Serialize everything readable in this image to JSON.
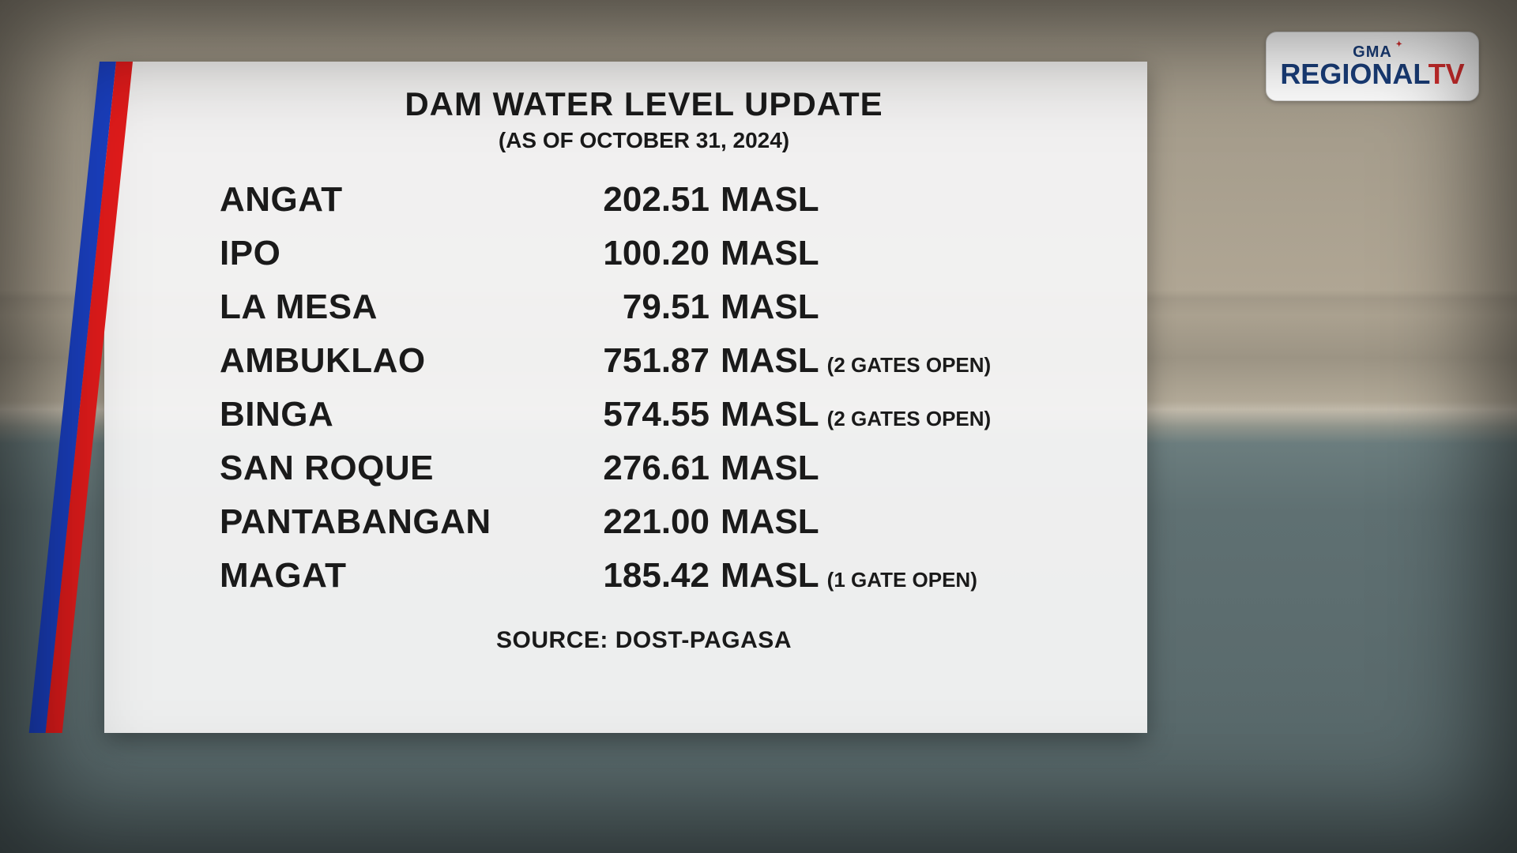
{
  "logo": {
    "line1": "GMA",
    "line2_part1": "REGIONAL",
    "line2_part2": "TV",
    "bg_color": "#ffffff",
    "color_primary": "#1a3e7a",
    "color_accent": "#d92f2f"
  },
  "panel": {
    "title": "DAM WATER LEVEL UPDATE",
    "subtitle": "(AS OF OCTOBER 31, 2024)",
    "source": "SOURCE: DOST-PAGASA",
    "unit": "MASL",
    "bg_color": "rgba(244,244,244,0.96)",
    "stripe_colors": [
      "#1a3fbf",
      "#e11b1b"
    ],
    "text_color": "#1a1a1a",
    "title_fontsize": 42,
    "subtitle_fontsize": 28,
    "row_fontsize": 44,
    "note_fontsize": 26,
    "source_fontsize": 30
  },
  "dams": [
    {
      "name": "ANGAT",
      "value": "202.51",
      "note": ""
    },
    {
      "name": "IPO",
      "value": "100.20",
      "note": ""
    },
    {
      "name": "LA MESA",
      "value": "79.51",
      "note": ""
    },
    {
      "name": "AMBUKLAO",
      "value": "751.87",
      "note": "(2 GATES OPEN)"
    },
    {
      "name": "BINGA",
      "value": "574.55",
      "note": "(2 GATES OPEN)"
    },
    {
      "name": "SAN ROQUE",
      "value": "276.61",
      "note": ""
    },
    {
      "name": "PANTABANGAN",
      "value": "221.00",
      "note": ""
    },
    {
      "name": "MAGAT",
      "value": "185.42",
      "note": "(1 GATE OPEN)"
    }
  ],
  "background": {
    "top_color": "#a09888",
    "mid_color": "#b5ac9a",
    "water_color": "#566668"
  }
}
